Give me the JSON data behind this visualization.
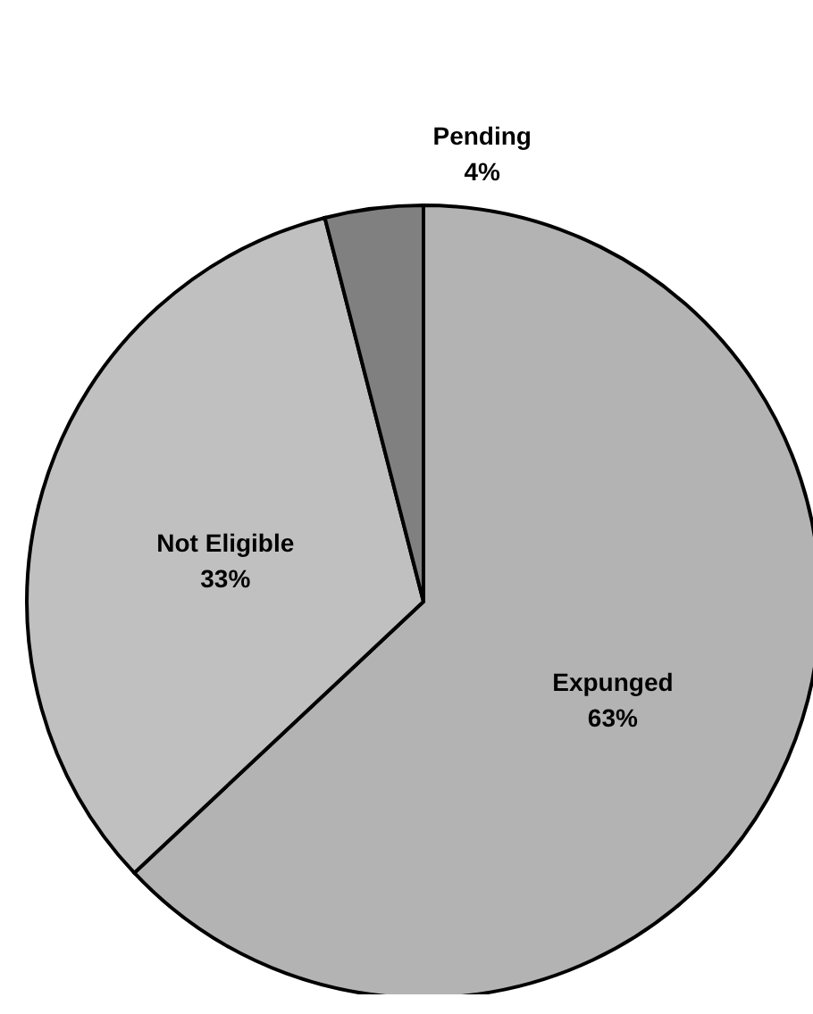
{
  "chart_data": {
    "type": "pie",
    "categories": [
      "Expunged",
      "Not Eligible",
      "Pending"
    ],
    "values": [
      63,
      33,
      4
    ],
    "colors": [
      "#b3b3b3",
      "#c0c0c0",
      "#808080"
    ],
    "value_labels": [
      "63%",
      "33%",
      "4%"
    ],
    "legend": false
  }
}
